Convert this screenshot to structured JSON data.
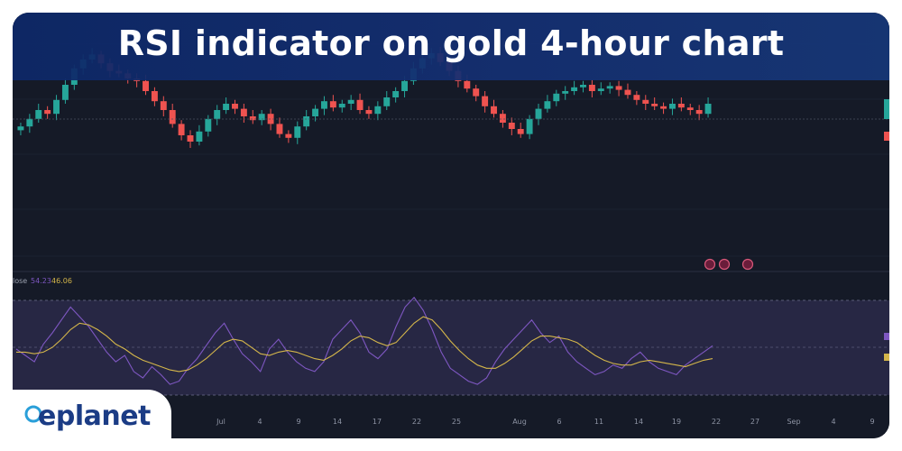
{
  "header": {
    "title": "RSI indicator on gold 4-hour chart"
  },
  "brand": {
    "name": "eplanet",
    "color": "#1b3c85",
    "accent": "#2a9fd9"
  },
  "colors": {
    "background": "#151a27",
    "up_candle": "#26a69a",
    "down_candle": "#ef5350",
    "rsi_line": "#7e57c2",
    "rsi_ma_line": "#d4b64a",
    "rsi_band": "#2a2a4a"
  },
  "rsi_legend": {
    "label": "lose",
    "rsi_value": "54.23",
    "ma_value": "46.06"
  },
  "event_icons": [
    "calendar-event-icon",
    "calendar-event-icon",
    "calendar-event-icon"
  ],
  "chart_data": [
    {
      "type": "candlestick",
      "title": "",
      "x_tick_labels": [
        "Jul",
        "4",
        "9",
        "14",
        "17",
        "22",
        "25",
        "Aug",
        "6",
        "11",
        "14",
        "19",
        "22",
        "27",
        "Sep",
        "4",
        "9"
      ],
      "close": [
        0.42,
        0.48,
        0.55,
        0.52,
        0.63,
        0.75,
        0.88,
        0.95,
        0.99,
        0.92,
        0.86,
        0.84,
        0.8,
        0.78,
        0.7,
        0.62,
        0.55,
        0.44,
        0.35,
        0.3,
        0.38,
        0.48,
        0.55,
        0.6,
        0.56,
        0.5,
        0.47,
        0.52,
        0.44,
        0.36,
        0.33,
        0.42,
        0.5,
        0.56,
        0.62,
        0.57,
        0.6,
        0.63,
        0.55,
        0.52,
        0.58,
        0.65,
        0.7,
        0.78,
        0.88,
        0.96,
        1.0,
        0.93,
        0.86,
        0.78,
        0.72,
        0.66,
        0.58,
        0.52,
        0.45,
        0.4,
        0.36,
        0.48,
        0.56,
        0.62,
        0.68,
        0.7,
        0.73,
        0.75,
        0.7,
        0.72,
        0.74,
        0.71,
        0.67,
        0.63,
        0.6,
        0.58,
        0.56,
        0.6,
        0.57,
        0.55,
        0.52,
        0.6
      ],
      "high_low_note": "",
      "annotations": []
    },
    {
      "type": "line",
      "title": "",
      "legend": [
        "lose",
        "54.23",
        "46.06"
      ],
      "series": [
        {
          "name": "",
          "values": [
            52,
            48,
            44,
            55,
            62,
            70,
            78,
            72,
            66,
            58,
            50,
            44,
            48,
            38,
            34,
            41,
            36,
            30,
            32,
            40,
            46,
            54,
            62,
            68,
            58,
            49,
            44,
            38,
            52,
            58,
            50,
            44,
            40,
            38,
            44,
            58,
            64,
            70,
            62,
            50,
            46,
            52,
            66,
            78,
            84,
            76,
            64,
            50,
            40,
            36,
            32,
            30,
            34,
            44,
            52,
            58,
            64,
            70,
            62,
            56,
            60,
            50,
            44,
            40,
            36,
            38,
            42,
            40,
            46,
            50,
            44,
            40,
            38,
            36,
            42,
            46,
            50,
            54
          ]
        },
        {
          "name": "",
          "values": [
            50,
            50,
            49,
            50,
            53,
            58,
            64,
            68,
            67,
            64,
            60,
            55,
            52,
            48,
            45,
            43,
            41,
            39,
            38,
            39,
            42,
            46,
            51,
            56,
            58,
            57,
            53,
            49,
            48,
            50,
            51,
            50,
            48,
            46,
            45,
            48,
            52,
            57,
            60,
            59,
            56,
            54,
            56,
            62,
            68,
            72,
            70,
            64,
            57,
            51,
            46,
            42,
            40,
            40,
            43,
            47,
            52,
            57,
            60,
            60,
            59,
            58,
            56,
            52,
            48,
            45,
            43,
            42,
            42,
            44,
            45,
            44,
            43,
            42,
            41,
            43,
            45,
            46
          ]
        }
      ],
      "reference_lines": [
        70,
        50,
        30
      ]
    }
  ]
}
